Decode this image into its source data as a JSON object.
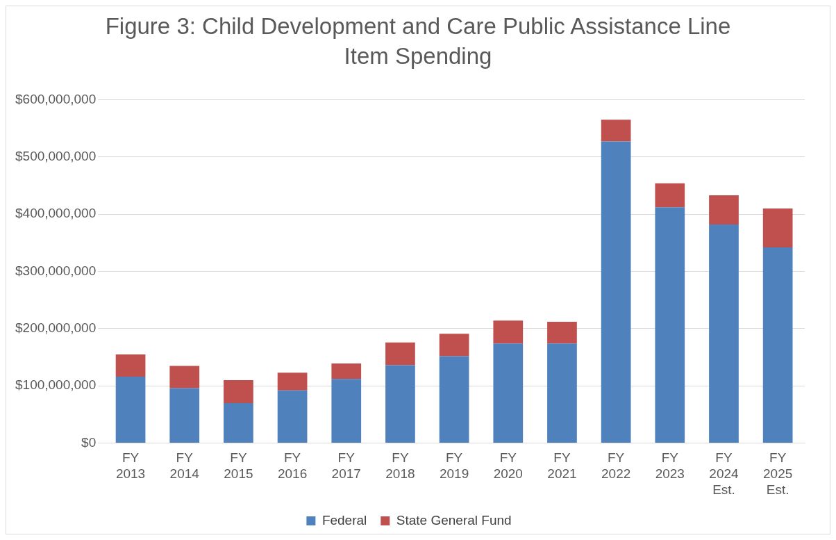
{
  "chart_data": {
    "type": "bar",
    "title": "Figure 3: Child Development and Care Public Assistance Line Item Spending",
    "categories": [
      "FY 2013",
      "FY 2014",
      "FY 2015",
      "FY 2016",
      "FY 2017",
      "FY 2018",
      "FY 2019",
      "FY 2020",
      "FY 2021",
      "FY 2022",
      "FY 2023",
      "FY 2024 Est.",
      "FY 2025 Est."
    ],
    "series": [
      {
        "name": "Federal",
        "color": "#4f81bd",
        "values": [
          116000000,
          96000000,
          70000000,
          92000000,
          112000000,
          136000000,
          152000000,
          174000000,
          174000000,
          527000000,
          412000000,
          382000000,
          342000000
        ]
      },
      {
        "name": "State General Fund",
        "color": "#c0504d",
        "values": [
          39000000,
          39000000,
          40000000,
          31000000,
          27000000,
          40000000,
          39000000,
          40000000,
          38000000,
          38000000,
          42000000,
          51000000,
          68000000
        ]
      }
    ],
    "stacked": true,
    "ylim": [
      0,
      600000000
    ],
    "yticks": [
      {
        "value": 0,
        "label": "$0"
      },
      {
        "value": 100000000,
        "label": "$100,000,000"
      },
      {
        "value": 200000000,
        "label": "$200,000,000"
      },
      {
        "value": 300000000,
        "label": "$300,000,000"
      },
      {
        "value": 400000000,
        "label": "$400,000,000"
      },
      {
        "value": 500000000,
        "label": "$500,000,000"
      },
      {
        "value": 600000000,
        "label": "$600,000,000"
      }
    ],
    "grid": "y",
    "legend": "bottom"
  }
}
